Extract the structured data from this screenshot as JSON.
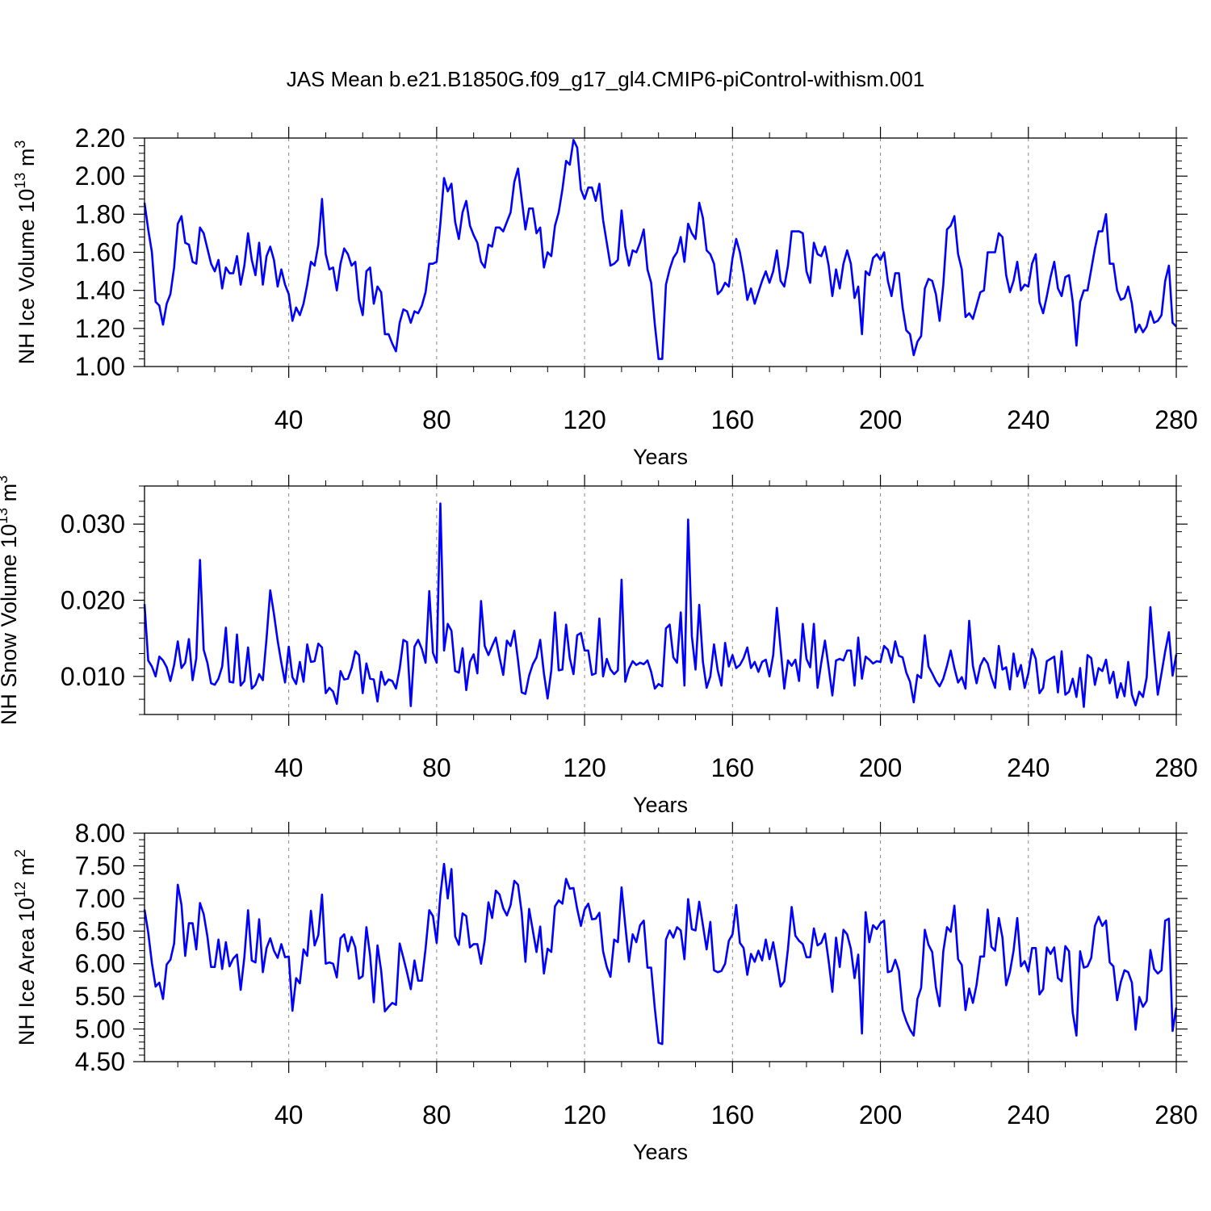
{
  "title": "JAS Mean b.e21.B1850G.f09_g17_gl4.CMIP6-piControl-withism.001",
  "line_color": "#0000ff",
  "chart_data": [
    {
      "type": "line",
      "xlabel": "Years",
      "ylabel": "NH Ice Volume 10",
      "ylabel_sup": "13",
      "ylabel_unit": " m",
      "ylabel_unit_sup": "3",
      "xlim": [
        1,
        280
      ],
      "ylim": [
        1.0,
        2.2
      ],
      "grid": "vertical dashed at major x ticks",
      "x_ticks": [
        40,
        80,
        120,
        160,
        200,
        240,
        280
      ],
      "x_tick_labels": [
        "40",
        "80",
        "120",
        "160",
        "200",
        "240",
        "280"
      ],
      "y_ticks": [
        1.0,
        1.2,
        1.4,
        1.6,
        1.8,
        2.0,
        2.2
      ],
      "y_tick_labels": [
        "1.00",
        "1.20",
        "1.40",
        "1.60",
        "1.80",
        "2.00",
        "2.20"
      ],
      "x_start": 1,
      "series": [
        {
          "values": [
            1.86,
            1.72,
            1.6,
            1.34,
            1.32,
            1.22,
            1.33,
            1.38,
            1.52,
            1.75,
            1.79,
            1.65,
            1.64,
            1.55,
            1.54,
            1.73,
            1.7,
            1.62,
            1.54,
            1.5,
            1.56,
            1.41,
            1.52,
            1.49,
            1.49,
            1.58,
            1.43,
            1.53,
            1.7,
            1.56,
            1.48,
            1.65,
            1.43,
            1.58,
            1.63,
            1.56,
            1.42,
            1.51,
            1.43,
            1.38,
            1.24,
            1.31,
            1.27,
            1.33,
            1.43,
            1.55,
            1.53,
            1.64,
            1.88,
            1.59,
            1.51,
            1.52,
            1.4,
            1.54,
            1.62,
            1.59,
            1.53,
            1.55,
            1.35,
            1.27,
            1.5,
            1.52,
            1.33,
            1.42,
            1.39,
            1.17,
            1.17,
            1.12,
            1.08,
            1.23,
            1.3,
            1.29,
            1.23,
            1.29,
            1.28,
            1.32,
            1.39,
            1.54,
            1.54,
            1.55,
            1.75,
            1.99,
            1.92,
            1.96,
            1.76,
            1.67,
            1.81,
            1.87,
            1.74,
            1.69,
            1.65,
            1.55,
            1.52,
            1.64,
            1.63,
            1.73,
            1.73,
            1.71,
            1.76,
            1.81,
            1.97,
            2.04,
            1.88,
            1.72,
            1.83,
            1.83,
            1.7,
            1.73,
            1.52,
            1.6,
            1.58,
            1.74,
            1.81,
            1.93,
            2.08,
            2.06,
            2.19,
            2.15,
            1.93,
            1.88,
            1.94,
            1.94,
            1.87,
            1.96,
            1.77,
            1.65,
            1.53,
            1.54,
            1.56,
            1.82,
            1.63,
            1.53,
            1.61,
            1.6,
            1.65,
            1.72,
            1.51,
            1.44,
            1.22,
            1.04,
            1.04,
            1.43,
            1.51,
            1.57,
            1.6,
            1.68,
            1.55,
            1.75,
            1.7,
            1.67,
            1.86,
            1.78,
            1.61,
            1.59,
            1.54,
            1.38,
            1.4,
            1.44,
            1.42,
            1.57,
            1.67,
            1.6,
            1.49,
            1.35,
            1.41,
            1.33,
            1.39,
            1.45,
            1.5,
            1.44,
            1.5,
            1.61,
            1.45,
            1.42,
            1.53,
            1.71,
            1.71,
            1.71,
            1.7,
            1.5,
            1.44,
            1.65,
            1.59,
            1.58,
            1.63,
            1.53,
            1.37,
            1.51,
            1.41,
            1.54,
            1.61,
            1.54,
            1.36,
            1.42,
            1.17,
            1.5,
            1.48,
            1.57,
            1.59,
            1.56,
            1.6,
            1.45,
            1.37,
            1.49,
            1.49,
            1.31,
            1.19,
            1.17,
            1.06,
            1.13,
            1.16,
            1.41,
            1.46,
            1.45,
            1.38,
            1.24,
            1.43,
            1.72,
            1.74,
            1.79,
            1.59,
            1.51,
            1.26,
            1.28,
            1.25,
            1.32,
            1.39,
            1.4,
            1.6,
            1.6,
            1.6,
            1.7,
            1.68,
            1.48,
            1.39,
            1.45,
            1.55,
            1.4,
            1.43,
            1.42,
            1.54,
            1.59,
            1.34,
            1.28,
            1.37,
            1.47,
            1.55,
            1.41,
            1.37,
            1.47,
            1.48,
            1.34,
            1.11,
            1.34,
            1.4,
            1.4,
            1.51,
            1.62,
            1.71,
            1.71,
            1.8,
            1.54,
            1.54,
            1.4,
            1.35,
            1.36,
            1.42,
            1.33,
            1.18,
            1.22,
            1.18,
            1.21,
            1.29,
            1.23,
            1.24,
            1.27,
            1.45,
            1.53,
            1.23,
            1.21
          ]
        }
      ]
    },
    {
      "type": "line",
      "xlabel": "Years",
      "ylabel": "NH Snow Volume 10",
      "ylabel_sup": "13",
      "ylabel_unit": " m",
      "ylabel_unit_sup": "3",
      "xlim": [
        1,
        280
      ],
      "ylim": [
        0.005,
        0.035
      ],
      "grid": "vertical dashed at major x ticks",
      "x_ticks": [
        40,
        80,
        120,
        160,
        200,
        240,
        280
      ],
      "x_tick_labels": [
        "40",
        "80",
        "120",
        "160",
        "200",
        "240",
        "280"
      ],
      "y_ticks": [
        0.01,
        0.02,
        0.03
      ],
      "y_tick_labels": [
        "0.010",
        "0.020",
        "0.030"
      ],
      "x_start": 1,
      "series": [
        {
          "values": [
            0.0195,
            0.0121,
            0.0113,
            0.01,
            0.0126,
            0.0121,
            0.0112,
            0.0094,
            0.0115,
            0.0146,
            0.0111,
            0.0118,
            0.0149,
            0.0095,
            0.0124,
            0.0253,
            0.0135,
            0.0118,
            0.0091,
            0.0089,
            0.0097,
            0.0113,
            0.0164,
            0.0093,
            0.0092,
            0.0155,
            0.0088,
            0.0094,
            0.0138,
            0.0084,
            0.0089,
            0.0103,
            0.0095,
            0.015,
            0.0213,
            0.0182,
            0.0147,
            0.0118,
            0.0092,
            0.0139,
            0.0099,
            0.009,
            0.0119,
            0.0093,
            0.0142,
            0.0119,
            0.012,
            0.0143,
            0.0138,
            0.0078,
            0.0085,
            0.008,
            0.0064,
            0.0107,
            0.0096,
            0.0097,
            0.0111,
            0.0133,
            0.0128,
            0.0078,
            0.0117,
            0.0097,
            0.0096,
            0.0067,
            0.0106,
            0.0089,
            0.0096,
            0.0094,
            0.0084,
            0.011,
            0.0148,
            0.0145,
            0.0061,
            0.0139,
            0.0148,
            0.0136,
            0.0118,
            0.0212,
            0.0131,
            0.0118,
            0.0327,
            0.0134,
            0.0169,
            0.016,
            0.0107,
            0.0105,
            0.0137,
            0.0082,
            0.0119,
            0.0129,
            0.0104,
            0.0199,
            0.014,
            0.0128,
            0.014,
            0.0151,
            0.0125,
            0.0102,
            0.0147,
            0.014,
            0.016,
            0.0121,
            0.0079,
            0.0077,
            0.0101,
            0.0116,
            0.0125,
            0.0148,
            0.0104,
            0.0071,
            0.0108,
            0.0184,
            0.0108,
            0.0109,
            0.0168,
            0.0124,
            0.0103,
            0.0154,
            0.0157,
            0.0134,
            0.0134,
            0.0102,
            0.0104,
            0.0176,
            0.01,
            0.0123,
            0.0109,
            0.0103,
            0.0108,
            0.0227,
            0.0093,
            0.011,
            0.012,
            0.0115,
            0.0118,
            0.0116,
            0.0121,
            0.0106,
            0.0084,
            0.009,
            0.0087,
            0.0163,
            0.0168,
            0.0125,
            0.0118,
            0.0184,
            0.0088,
            0.0306,
            0.0153,
            0.0109,
            0.0194,
            0.0119,
            0.0085,
            0.01,
            0.0142,
            0.0108,
            0.0088,
            0.0144,
            0.0113,
            0.0128,
            0.0111,
            0.0115,
            0.0124,
            0.0138,
            0.0111,
            0.0119,
            0.0106,
            0.0119,
            0.0122,
            0.01,
            0.0128,
            0.019,
            0.0137,
            0.0084,
            0.0121,
            0.0114,
            0.0122,
            0.0094,
            0.0169,
            0.0123,
            0.0112,
            0.0169,
            0.0085,
            0.0118,
            0.0147,
            0.0112,
            0.0075,
            0.0121,
            0.0123,
            0.0121,
            0.0134,
            0.0134,
            0.0088,
            0.0151,
            0.0097,
            0.0126,
            0.0122,
            0.0117,
            0.012,
            0.0119,
            0.014,
            0.0135,
            0.0118,
            0.0146,
            0.0127,
            0.0125,
            0.0105,
            0.0093,
            0.0066,
            0.0102,
            0.0098,
            0.0154,
            0.0113,
            0.0104,
            0.0094,
            0.0087,
            0.0097,
            0.0114,
            0.0134,
            0.0111,
            0.0092,
            0.0099,
            0.0084,
            0.0173,
            0.0114,
            0.0091,
            0.0114,
            0.0124,
            0.0117,
            0.0099,
            0.0085,
            0.014,
            0.0109,
            0.0112,
            0.0083,
            0.013,
            0.01,
            0.0115,
            0.0085,
            0.0104,
            0.0136,
            0.0123,
            0.0078,
            0.0085,
            0.012,
            0.0123,
            0.0126,
            0.0079,
            0.0133,
            0.0076,
            0.008,
            0.0097,
            0.0073,
            0.0111,
            0.006,
            0.0128,
            0.0124,
            0.0089,
            0.0111,
            0.0107,
            0.0122,
            0.0091,
            0.0106,
            0.0072,
            0.0091,
            0.0074,
            0.0119,
            0.0076,
            0.0062,
            0.008,
            0.0073,
            0.0099,
            0.0191,
            0.013,
            0.0076,
            0.0104,
            0.0133,
            0.0158,
            0.0101,
            0.0129
          ]
        }
      ]
    },
    {
      "type": "line",
      "xlabel": "Years",
      "ylabel": "NH Ice Area 10",
      "ylabel_sup": "12",
      "ylabel_unit": " m",
      "ylabel_unit_sup": "2",
      "xlim": [
        1,
        280
      ],
      "ylim": [
        4.5,
        8.0
      ],
      "grid": "vertical dashed at major x ticks",
      "x_ticks": [
        40,
        80,
        120,
        160,
        200,
        240,
        280
      ],
      "x_tick_labels": [
        "40",
        "80",
        "120",
        "160",
        "200",
        "240",
        "280"
      ],
      "y_ticks": [
        4.5,
        5.0,
        5.5,
        6.0,
        6.5,
        7.0,
        7.5,
        8.0
      ],
      "y_tick_labels": [
        "4.50",
        "5.00",
        "5.50",
        "6.00",
        "6.50",
        "7.00",
        "7.50",
        "8.00"
      ],
      "x_start": 1,
      "series": [
        {
          "values": [
            6.83,
            6.48,
            6.01,
            5.65,
            5.71,
            5.46,
            5.99,
            6.06,
            6.31,
            7.21,
            6.9,
            6.12,
            6.62,
            6.62,
            6.22,
            6.93,
            6.76,
            6.42,
            5.95,
            5.95,
            6.37,
            5.92,
            6.33,
            5.96,
            6.08,
            6.14,
            5.6,
            6.1,
            6.82,
            6.05,
            6.02,
            6.68,
            5.87,
            6.24,
            6.39,
            6.2,
            6.09,
            6.3,
            6.1,
            6.11,
            5.28,
            5.78,
            5.7,
            6.22,
            6.12,
            6.81,
            6.28,
            6.44,
            7.06,
            6.0,
            6.02,
            6.0,
            5.79,
            6.39,
            6.45,
            6.19,
            6.41,
            6.25,
            5.77,
            5.81,
            6.56,
            6.13,
            5.41,
            6.28,
            5.89,
            5.27,
            5.34,
            5.4,
            5.37,
            6.31,
            6.09,
            5.86,
            5.61,
            6.05,
            5.74,
            5.74,
            6.23,
            6.82,
            6.73,
            6.32,
            7.05,
            7.53,
            7.0,
            7.45,
            6.42,
            6.29,
            6.77,
            6.73,
            6.25,
            6.3,
            6.3,
            6.0,
            6.36,
            6.94,
            6.7,
            7.12,
            7.06,
            6.85,
            6.74,
            6.9,
            7.27,
            7.21,
            6.78,
            6.03,
            6.84,
            6.51,
            6.18,
            6.57,
            5.85,
            6.23,
            6.18,
            6.88,
            6.97,
            6.92,
            7.3,
            7.15,
            7.16,
            6.84,
            6.58,
            6.83,
            6.92,
            6.68,
            6.69,
            6.78,
            6.19,
            5.95,
            5.8,
            6.37,
            6.33,
            7.17,
            6.59,
            6.03,
            6.45,
            6.33,
            6.59,
            6.66,
            5.94,
            5.94,
            5.31,
            4.79,
            4.77,
            6.37,
            6.51,
            6.4,
            6.56,
            6.51,
            6.07,
            6.99,
            6.53,
            6.51,
            6.95,
            6.59,
            6.22,
            6.64,
            5.9,
            5.87,
            5.89,
            6.0,
            6.35,
            6.45,
            6.9,
            6.32,
            6.24,
            5.83,
            6.15,
            6.03,
            6.2,
            6.05,
            6.37,
            6.07,
            6.33,
            6.0,
            5.65,
            5.73,
            6.23,
            6.87,
            6.43,
            6.35,
            6.3,
            6.1,
            6.1,
            6.54,
            6.28,
            6.32,
            6.46,
            6.04,
            5.57,
            6.4,
            5.95,
            6.52,
            6.45,
            6.23,
            5.78,
            6.14,
            4.93,
            6.79,
            6.33,
            6.59,
            6.53,
            6.62,
            6.66,
            5.87,
            5.89,
            6.06,
            5.89,
            5.29,
            5.12,
            4.99,
            4.9,
            5.46,
            5.63,
            6.52,
            6.29,
            6.18,
            5.64,
            5.35,
            6.19,
            6.56,
            6.49,
            6.89,
            6.07,
            5.98,
            5.29,
            5.62,
            5.4,
            5.68,
            6.11,
            6.11,
            6.83,
            6.26,
            6.2,
            6.7,
            6.4,
            5.67,
            5.87,
            6.2,
            6.7,
            5.96,
            6.04,
            5.88,
            6.24,
            6.24,
            5.53,
            5.61,
            6.25,
            6.15,
            6.25,
            5.78,
            5.73,
            6.27,
            6.19,
            5.25,
            4.9,
            6.19,
            5.94,
            5.96,
            6.09,
            6.58,
            6.72,
            6.58,
            6.66,
            6.02,
            5.96,
            5.44,
            5.72,
            5.9,
            5.87,
            5.71,
            4.99,
            5.49,
            5.34,
            5.43,
            6.21,
            5.92,
            5.85,
            5.9,
            6.66,
            6.69,
            4.97,
            5.33
          ]
        }
      ]
    }
  ]
}
